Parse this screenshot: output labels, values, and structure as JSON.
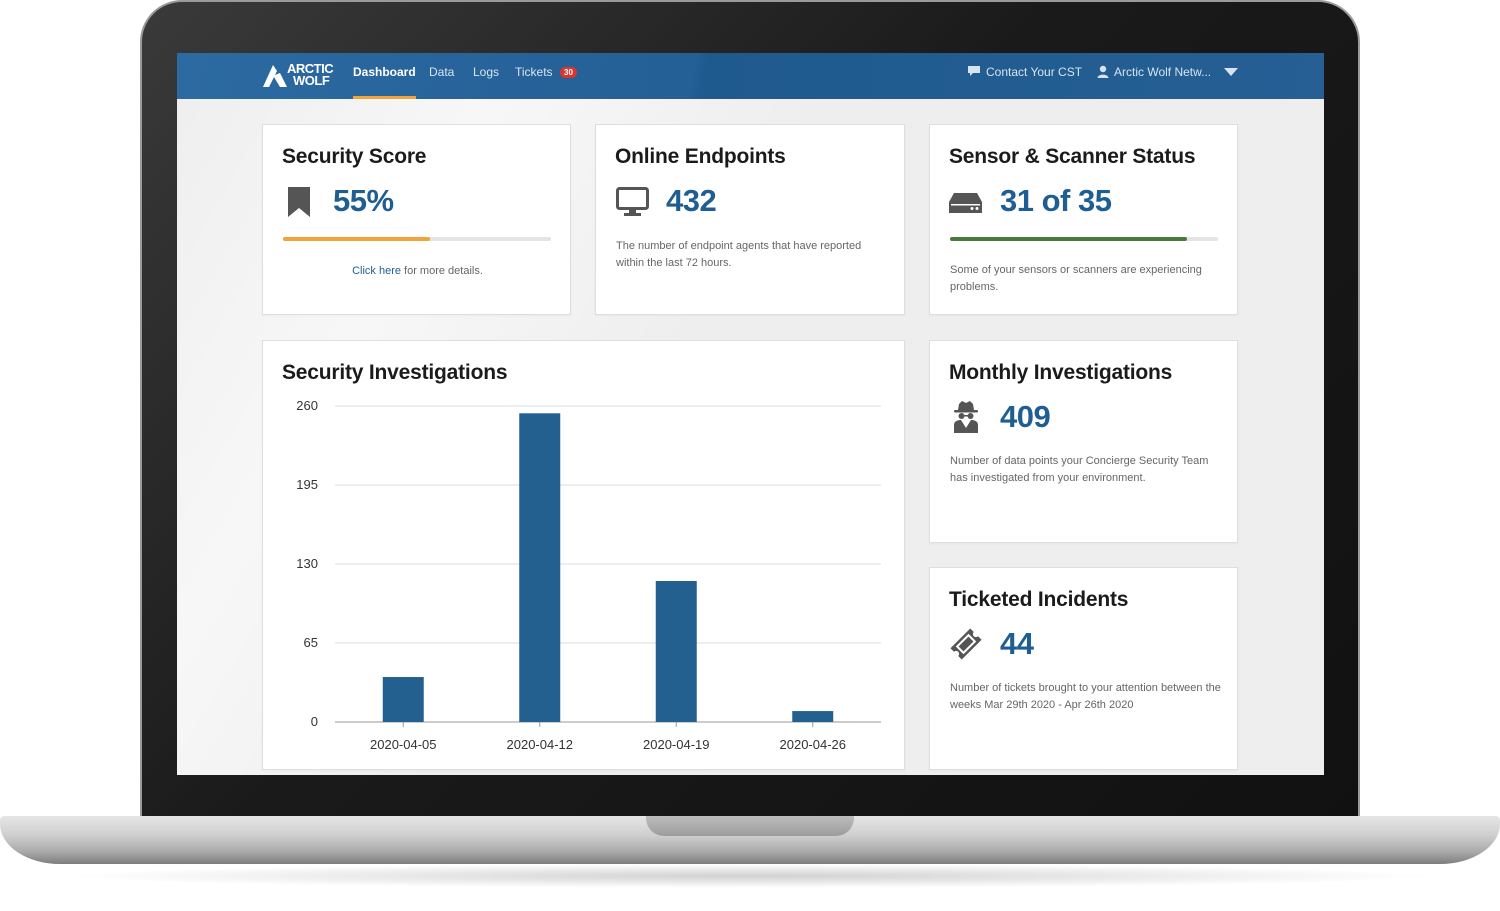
{
  "nav": {
    "logo_line1": "ARCTIC",
    "logo_line2": "WOLF",
    "links": [
      {
        "label": "Dashboard"
      },
      {
        "label": "Data"
      },
      {
        "label": "Logs"
      },
      {
        "label": "Tickets"
      }
    ],
    "tickets_badge": "30",
    "contact": "Contact Your CST",
    "account": "Arctic Wolf Netw..."
  },
  "security_score": {
    "title": "Security Score",
    "value": "55%",
    "progress": 0.55,
    "link_text": "Click here",
    "suffix": " for more details.",
    "icon": "bookmark-icon",
    "color": "#f0a43a"
  },
  "online_endpoints": {
    "title": "Online Endpoints",
    "value": "432",
    "description": "The number of endpoint agents that have reported within the last 72 hours.",
    "icon": "monitor-icon"
  },
  "sensor_status": {
    "title": "Sensor & Scanner Status",
    "value": "31 of 35",
    "progress": 0.8857,
    "description": "Some of your sensors or scanners are experiencing problems.",
    "icon": "server-icon",
    "color": "#4a7a3a"
  },
  "monthly_investigations": {
    "title": "Monthly Investigations",
    "value": "409",
    "description": "Number of data points your Concierge Security Team has investigated from your environment.",
    "icon": "spy-icon"
  },
  "ticketed_incidents": {
    "title": "Ticketed Incidents",
    "value": "44",
    "description": "Number of tickets brought to your attention between the weeks Mar 29th 2020 - Apr 26th 2020",
    "icon": "ticket-icon"
  },
  "security_investigations": {
    "title": "Security Investigations"
  },
  "colors": {
    "accent": "#1f5e93",
    "nav": "#245f95",
    "bar": "#23608f"
  },
  "chart_data": {
    "type": "bar",
    "title": "Security Investigations",
    "categories": [
      "2020-04-05",
      "2020-04-12",
      "2020-04-19",
      "2020-04-26"
    ],
    "values": [
      37,
      254,
      116,
      9
    ],
    "yticks": [
      0,
      65,
      130,
      195,
      260
    ],
    "ylim": [
      0,
      260
    ],
    "grid": true,
    "legend": "none"
  }
}
